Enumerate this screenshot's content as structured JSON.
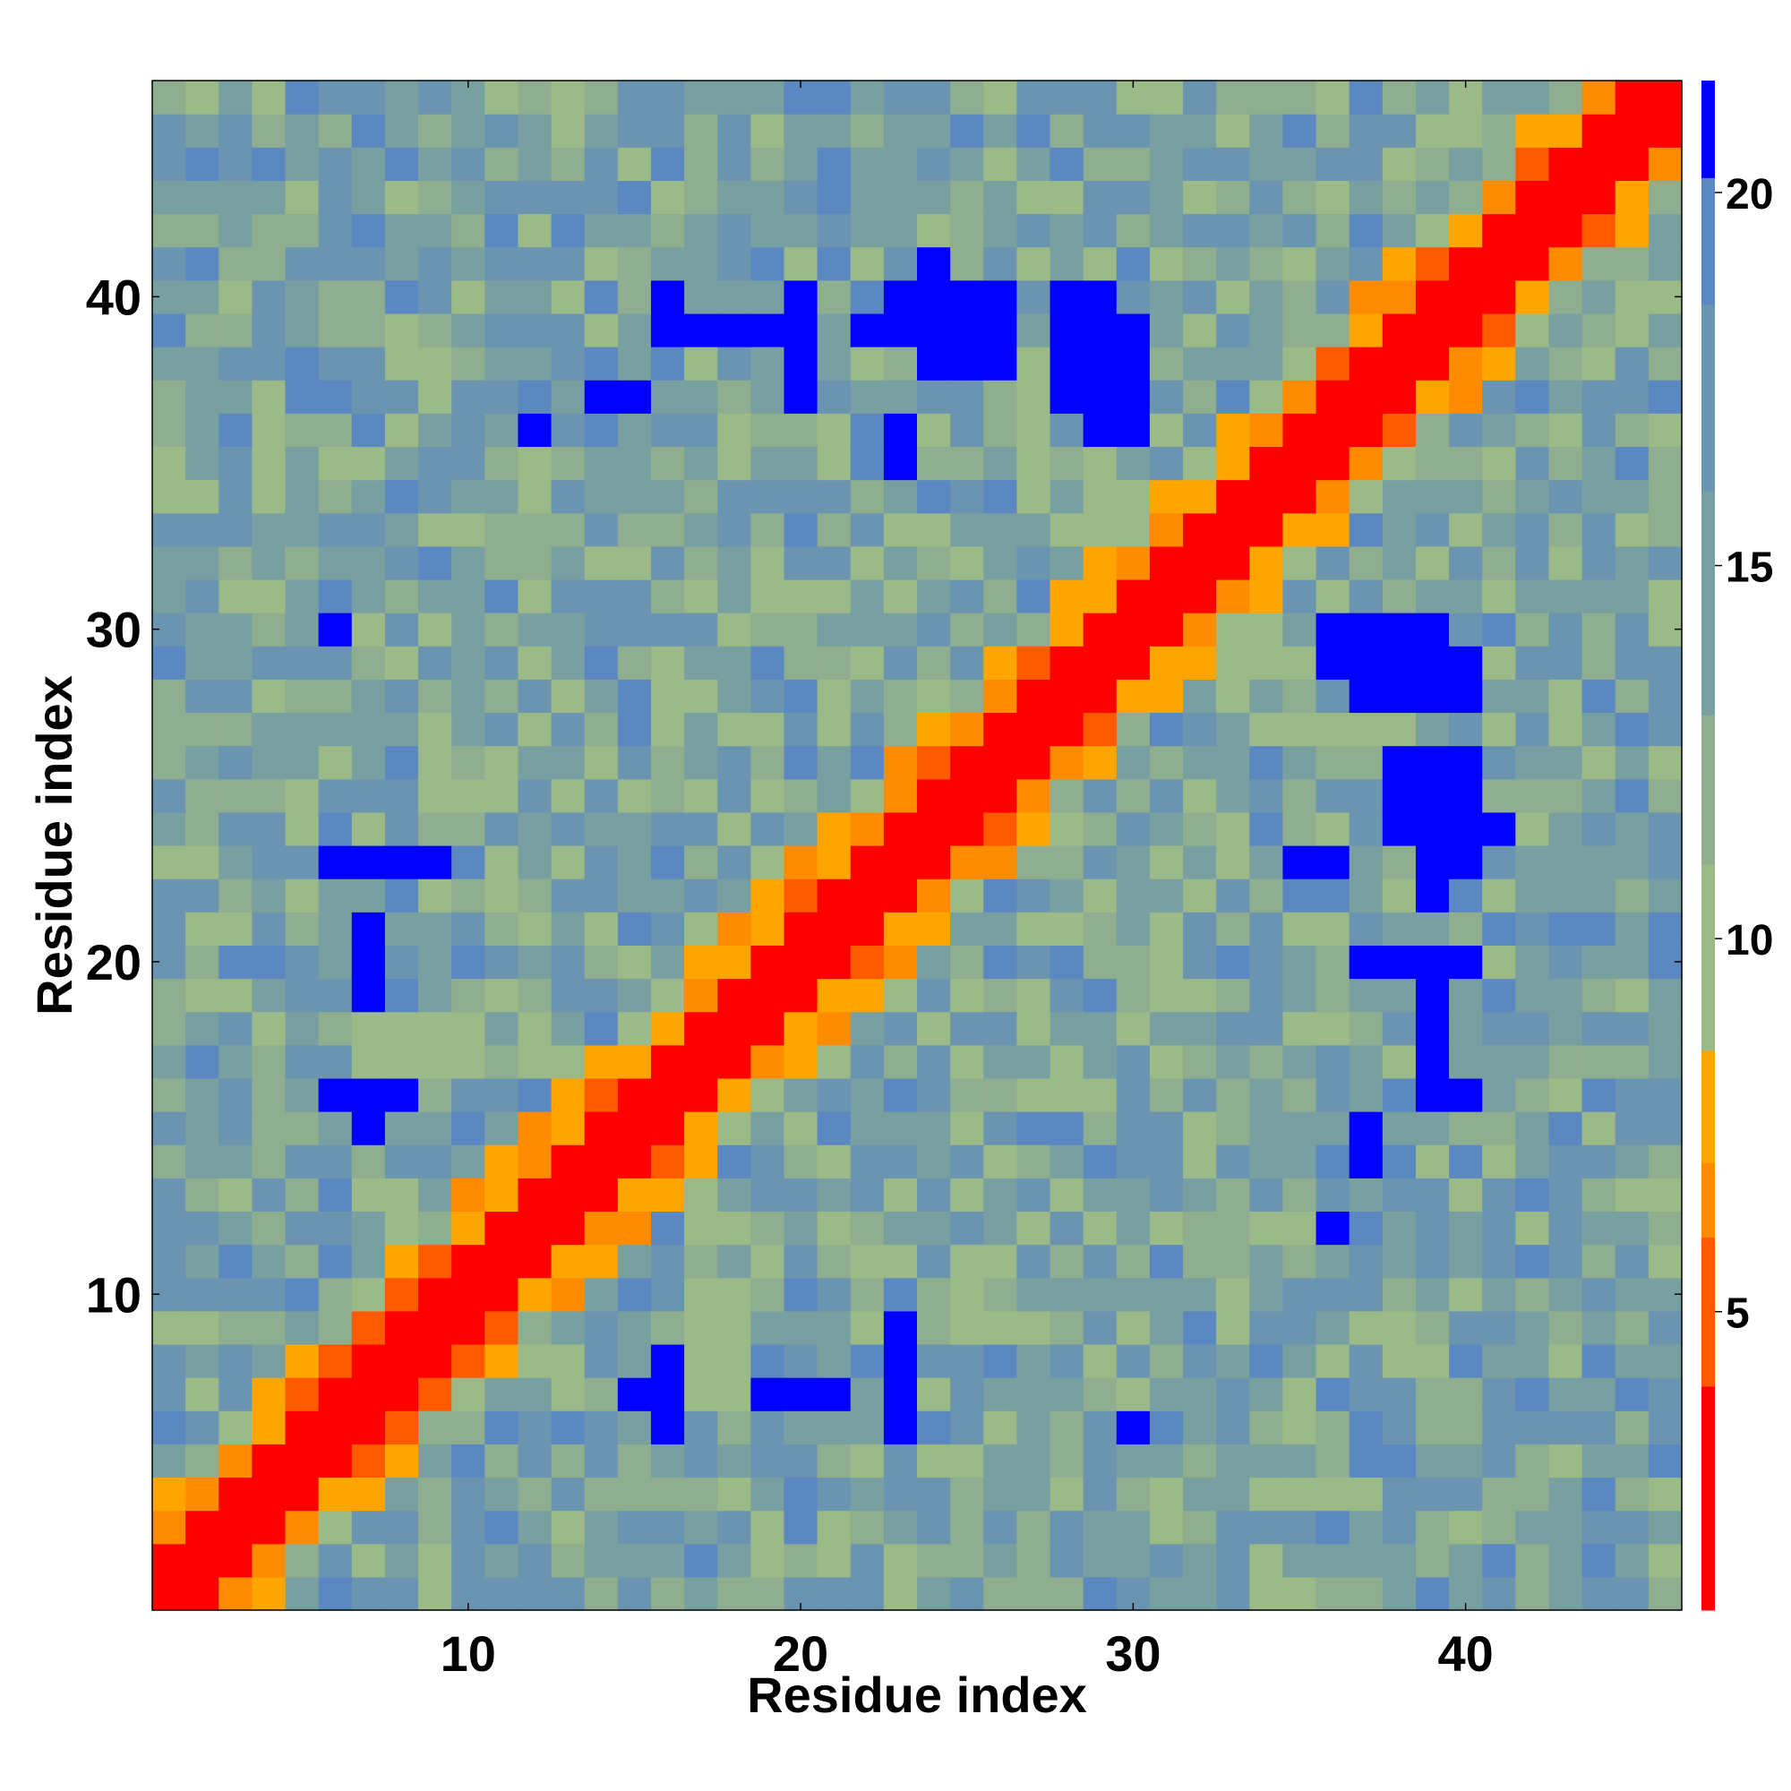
{
  "chart_data": {
    "type": "heatmap",
    "title": "",
    "xlabel": "Residue index",
    "ylabel": "Residue index",
    "x_range": [
      0.5,
      46.5
    ],
    "y_range": [
      0.5,
      46.5
    ],
    "x_ticks": [
      10,
      20,
      30,
      40
    ],
    "y_ticks": [
      10,
      20,
      30,
      40
    ],
    "n_residues": 46,
    "colorbar": {
      "range": [
        1,
        21.5
      ],
      "ticks": [
        5,
        10,
        15,
        20
      ],
      "bands": [
        {
          "from": 1,
          "to": 4,
          "color": "#ff0000"
        },
        {
          "from": 4,
          "to": 6,
          "color": "#ff5a00"
        },
        {
          "from": 6,
          "to": 7,
          "color": "#ff8c00"
        },
        {
          "from": 7,
          "to": 8.5,
          "color": "#ffa500"
        },
        {
          "from": 8.5,
          "to": 11,
          "color": "#9cba88"
        },
        {
          "from": 11,
          "to": 13,
          "color": "#8fad8f"
        },
        {
          "from": 13,
          "to": 16,
          "color": "#78a0a0"
        },
        {
          "from": 16,
          "to": 18.5,
          "color": "#6b94b0"
        },
        {
          "from": 18.5,
          "to": 20.2,
          "color": "#5b88c0"
        },
        {
          "from": 20.2,
          "to": 21.5,
          "color": "#0000ff"
        }
      ]
    },
    "blue_cells": [
      [
        6,
        30
      ],
      [
        7,
        15
      ],
      [
        7,
        19
      ],
      [
        7,
        20
      ],
      [
        7,
        21
      ],
      [
        6,
        16
      ],
      [
        7,
        16
      ],
      [
        8,
        16
      ],
      [
        7,
        23
      ],
      [
        8,
        23
      ],
      [
        9,
        23
      ],
      [
        12,
        36
      ],
      [
        15,
        37
      ],
      [
        16,
        39
      ],
      [
        16,
        40
      ],
      [
        17,
        39
      ],
      [
        16,
        7
      ],
      [
        16,
        8
      ],
      [
        16,
        6
      ],
      [
        15,
        7
      ],
      [
        19,
        7
      ],
      [
        20,
        7
      ],
      [
        20,
        37
      ],
      [
        20,
        38
      ],
      [
        20,
        39
      ],
      [
        20,
        40
      ],
      [
        23,
        6
      ],
      [
        23,
        7
      ],
      [
        23,
        8
      ],
      [
        23,
        40
      ],
      [
        23,
        36
      ],
      [
        24,
        38
      ],
      [
        24,
        39
      ],
      [
        24,
        40
      ],
      [
        24,
        41
      ],
      [
        25,
        38
      ],
      [
        25,
        39
      ],
      [
        25,
        40
      ],
      [
        26,
        38
      ],
      [
        26,
        39
      ],
      [
        26,
        40
      ],
      [
        23,
        35
      ],
      [
        29,
        36
      ],
      [
        29,
        37
      ],
      [
        28,
        37
      ],
      [
        28,
        38
      ],
      [
        28,
        39
      ],
      [
        28,
        40
      ],
      [
        29,
        38
      ],
      [
        29,
        39
      ],
      [
        29,
        40
      ],
      [
        30,
        37
      ],
      [
        30,
        38
      ],
      [
        30,
        39
      ],
      [
        39,
        17
      ],
      [
        39,
        18
      ],
      [
        39,
        19
      ],
      [
        39,
        20
      ],
      [
        39,
        22
      ],
      [
        39,
        23
      ],
      [
        39,
        24
      ],
      [
        39,
        25
      ],
      [
        39,
        26
      ],
      [
        38,
        25
      ],
      [
        38,
        26
      ],
      [
        30,
        6
      ],
      [
        36,
        23
      ],
      [
        36,
        12
      ],
      [
        37,
        14
      ],
      [
        36,
        30
      ]
    ]
  }
}
